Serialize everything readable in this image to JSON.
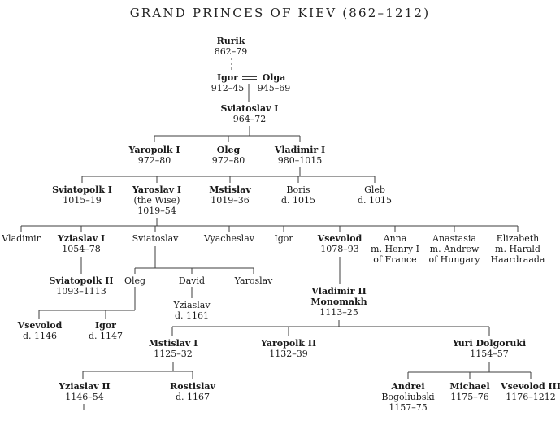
{
  "title": "GRAND PRINCES OF KIEV (862–1212)",
  "nodes": [
    {
      "id": "rurik",
      "name": "Rurik",
      "bold": true,
      "sub": [
        "862–79"
      ]
    },
    {
      "id": "igor912",
      "name": "Igor",
      "bold": true,
      "sub": [
        "912–45"
      ]
    },
    {
      "id": "olga",
      "name": "Olga",
      "bold": true,
      "sub": [
        "945–69"
      ]
    },
    {
      "id": "sviatoslav1",
      "name": "Sviatoslav I",
      "bold": true,
      "sub": [
        "964–72"
      ]
    },
    {
      "id": "yaropolk1",
      "name": "Yaropolk I",
      "bold": true,
      "sub": [
        "972–80"
      ]
    },
    {
      "id": "oleg972",
      "name": "Oleg",
      "bold": true,
      "sub": [
        "972–80"
      ]
    },
    {
      "id": "vladimir1",
      "name": "Vladimir I",
      "bold": true,
      "sub": [
        "980–1015"
      ]
    },
    {
      "id": "sviatopolk1",
      "name": "Sviatopolk I",
      "bold": true,
      "sub": [
        "1015–19"
      ]
    },
    {
      "id": "yaroslav1",
      "name": "Yaroslav I",
      "bold": true,
      "sub": [
        "(the Wise)",
        "1019–54"
      ]
    },
    {
      "id": "mstislav1019",
      "name": "Mstislav",
      "bold": true,
      "sub": [
        "1019–36"
      ]
    },
    {
      "id": "boris",
      "name": "Boris",
      "bold": false,
      "sub": [
        "d. 1015"
      ]
    },
    {
      "id": "gleb",
      "name": "Gleb",
      "bold": false,
      "sub": [
        "d. 1015"
      ]
    },
    {
      "id": "vladimir_s",
      "name": "Vladimir",
      "bold": false,
      "sub": []
    },
    {
      "id": "yziaslav1",
      "name": "Yziaslav I",
      "bold": true,
      "sub": [
        "1054–78"
      ]
    },
    {
      "id": "sviatoslav_s",
      "name": "Sviatoslav",
      "bold": false,
      "sub": []
    },
    {
      "id": "vyacheslav",
      "name": "Vyacheslav",
      "bold": false,
      "sub": []
    },
    {
      "id": "igor_s",
      "name": "Igor",
      "bold": false,
      "sub": []
    },
    {
      "id": "vsevolod1078",
      "name": "Vsevolod",
      "bold": true,
      "sub": [
        "1078–93"
      ]
    },
    {
      "id": "anna",
      "name": "Anna",
      "bold": false,
      "sub": [
        "m. Henry I",
        "of France"
      ]
    },
    {
      "id": "anastasia",
      "name": "Anastasia",
      "bold": false,
      "sub": [
        "m. Andrew",
        "of Hungary"
      ]
    },
    {
      "id": "elizabeth",
      "name": "Elizabeth",
      "bold": false,
      "sub": [
        "m. Harald",
        "Haardraada"
      ]
    },
    {
      "id": "sviatopolk2",
      "name": "Sviatopolk II",
      "bold": true,
      "sub": [
        "1093–1113"
      ]
    },
    {
      "id": "oleg_s",
      "name": "Oleg",
      "bold": false,
      "sub": []
    },
    {
      "id": "david",
      "name": "David",
      "bold": false,
      "sub": []
    },
    {
      "id": "yaroslav_s",
      "name": "Yaroslav",
      "bold": false,
      "sub": []
    },
    {
      "id": "yziaslav1161",
      "name": "Yziaslav",
      "bold": false,
      "sub": [
        "d. 1161"
      ]
    },
    {
      "id": "vladimir2",
      "name": "Vladimir II",
      "name2": "Monomakh",
      "bold": true,
      "sub": [
        "1113–25"
      ]
    },
    {
      "id": "vsevolod1146",
      "name": "Vsevolod",
      "bold": true,
      "sub": [
        "d. 1146"
      ]
    },
    {
      "id": "igor1147",
      "name": "Igor",
      "bold": true,
      "sub": [
        "d. 1147"
      ]
    },
    {
      "id": "mstislav1",
      "name": "Mstislav I",
      "bold": true,
      "sub": [
        "1125–32"
      ]
    },
    {
      "id": "yaropolk2",
      "name": "Yaropolk II",
      "bold": true,
      "sub": [
        "1132–39"
      ]
    },
    {
      "id": "yuri",
      "name": "Yuri Dolgoruki",
      "bold": true,
      "sub": [
        "1154–57"
      ]
    },
    {
      "id": "yziaslav2",
      "name": "Yziaslav II",
      "bold": true,
      "sub": [
        "1146–54"
      ]
    },
    {
      "id": "rostislav",
      "name": "Rostislav",
      "bold": true,
      "sub": [
        "d. 1167"
      ]
    },
    {
      "id": "andrei",
      "name": "Andrei",
      "bold": true,
      "sub": [
        "Bogoliubski",
        "1157–75"
      ]
    },
    {
      "id": "michael",
      "name": "Michael",
      "bold": true,
      "sub": [
        "1175–76"
      ]
    },
    {
      "id": "vsevolod3",
      "name": "Vsevolod III",
      "bold": true,
      "sub": [
        "1176–1212"
      ]
    }
  ],
  "line_color": "#3d3d3d"
}
